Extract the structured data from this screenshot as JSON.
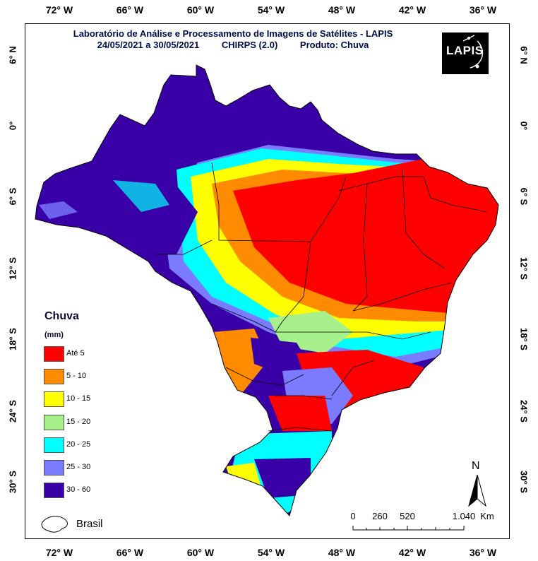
{
  "title": {
    "line1": "Laboratório de Análise e Processamento de Imagens de Satélites - LAPIS",
    "period": "24/05/2021  a 30/05/2021",
    "source": "CHIRPS (2.0)",
    "product": "Produto: Chuva"
  },
  "logo": {
    "text": "LAPIS"
  },
  "axes": {
    "longitude_ticks": [
      "72° W",
      "66° W",
      "60° W",
      "54° W",
      "48° W",
      "42° W",
      "36° W"
    ],
    "latitude_ticks": [
      "6° N",
      "0°",
      "6° S",
      "12° S",
      "18° S",
      "24° S",
      "30° S"
    ]
  },
  "legend": {
    "title": "Chuva",
    "unit": "(mm)",
    "items": [
      {
        "label": "Até 5",
        "color": "#ff0000"
      },
      {
        "label": "5 - 10",
        "color": "#ff8c00"
      },
      {
        "label": "10 - 15",
        "color": "#ffff00"
      },
      {
        "label": "15 - 20",
        "color": "#a8f08c"
      },
      {
        "label": "20 - 25",
        "color": "#00ffff"
      },
      {
        "label": "25 - 30",
        "color": "#7b7bff"
      },
      {
        "label": "30 - 60",
        "color": "#3a00a8"
      }
    ]
  },
  "boundary_legend": {
    "label": "Brasil"
  },
  "scale_bar": {
    "labels": [
      "0",
      "260",
      "520",
      "1.040"
    ],
    "unit": "Km"
  },
  "north_arrow": {
    "label": "N"
  }
}
